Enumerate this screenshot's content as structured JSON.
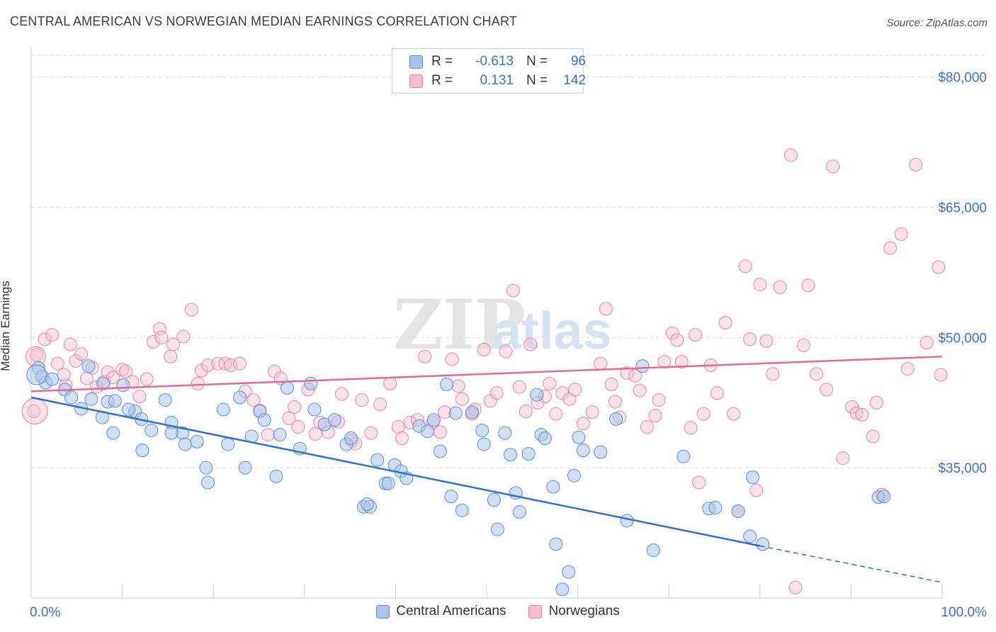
{
  "title": "CENTRAL AMERICAN VS NORWEGIAN MEDIAN EARNINGS CORRELATION CHART",
  "source": "Source: ZipAtlas.com",
  "watermark": {
    "zip": "ZIP",
    "atlas": "atlas"
  },
  "legend": {
    "rows": [
      {
        "series": "Central Americans",
        "r_label": "R =",
        "r_value": "-0.613",
        "n_label": "N =",
        "n_value": "96"
      },
      {
        "series": "Norwegians",
        "r_label": "R =",
        "r_value": "0.131",
        "n_label": "N =",
        "n_value": "142"
      }
    ]
  },
  "colors": {
    "blue_fill": "#a9c4ec",
    "blue_stroke": "#5b8fdc",
    "blue_line": "#2e6fd4",
    "pink_fill": "#f6bcd0",
    "pink_stroke": "#e585a6",
    "pink_line": "#e26a93",
    "axis_label": "#3a6fd8",
    "grid": "#dcdcdc"
  },
  "chart_data": {
    "type": "scatter",
    "title": "CENTRAL AMERICAN VS NORWEGIAN MEDIAN EARNINGS CORRELATION CHART",
    "xlabel": "",
    "ylabel": "Median Earnings",
    "xlim": [
      0,
      100
    ],
    "ylim": [
      20000,
      82500
    ],
    "x_tick_labels": [
      "0.0%",
      "100.0%"
    ],
    "y_ticks": [
      35000,
      50000,
      65000,
      80000
    ],
    "y_tick_labels": [
      "$35,000",
      "$50,000",
      "$65,000",
      "$80,000"
    ],
    "grid": true,
    "legend_position": "bottom-center",
    "series": [
      {
        "name": "Central Americans",
        "color": "blue",
        "r": -0.613,
        "n": 96,
        "trend": {
          "x": [
            0,
            80
          ],
          "y": [
            43100,
            26000
          ],
          "dashed_to": [
            100,
            21800
          ]
        },
        "points": [
          [
            0.8,
            46500
          ],
          [
            1.2,
            45500
          ],
          [
            1.6,
            44800
          ],
          [
            2.3,
            45200
          ],
          [
            3.7,
            44000
          ],
          [
            4.4,
            43100
          ],
          [
            6.3,
            46700
          ],
          [
            6.6,
            42900
          ],
          [
            5.5,
            41800
          ],
          [
            7.8,
            40800
          ],
          [
            8.4,
            42600
          ],
          [
            9.2,
            42700
          ],
          [
            7.9,
            44700
          ],
          [
            10.1,
            44500
          ],
          [
            11.4,
            41500
          ],
          [
            12.1,
            40600
          ],
          [
            14.7,
            42800
          ],
          [
            13.2,
            39300
          ],
          [
            15.4,
            40200
          ],
          [
            16.6,
            39000
          ],
          [
            16.9,
            37700
          ],
          [
            18.2,
            38000
          ],
          [
            19.2,
            35000
          ],
          [
            19.4,
            33300
          ],
          [
            10.7,
            41700
          ],
          [
            12.2,
            37000
          ],
          [
            9.0,
            39000
          ],
          [
            15.4,
            39000
          ],
          [
            21.1,
            41700
          ],
          [
            21.6,
            37700
          ],
          [
            22.9,
            43100
          ],
          [
            23.5,
            35000
          ],
          [
            24.2,
            38600
          ],
          [
            25.1,
            41500
          ],
          [
            25.6,
            40500
          ],
          [
            26.9,
            34000
          ],
          [
            27.3,
            38800
          ],
          [
            28.1,
            44200
          ],
          [
            29.5,
            37200
          ],
          [
            30.7,
            44700
          ],
          [
            31.1,
            41700
          ],
          [
            32.2,
            40000
          ],
          [
            33.3,
            40500
          ],
          [
            34.6,
            37700
          ],
          [
            35.1,
            38400
          ],
          [
            36.5,
            30500
          ],
          [
            37.2,
            30500
          ],
          [
            38.0,
            35900
          ],
          [
            36.9,
            30800
          ],
          [
            38.9,
            33200
          ],
          [
            39.2,
            33200
          ],
          [
            39.9,
            35300
          ],
          [
            40.6,
            34600
          ],
          [
            41.2,
            33800
          ],
          [
            42.6,
            39800
          ],
          [
            43.5,
            39200
          ],
          [
            44.2,
            40500
          ],
          [
            44.9,
            36900
          ],
          [
            45.6,
            44600
          ],
          [
            46.6,
            41300
          ],
          [
            47.3,
            30100
          ],
          [
            46.1,
            31700
          ],
          [
            48.4,
            41400
          ],
          [
            49.5,
            39300
          ],
          [
            49.7,
            37700
          ],
          [
            50.8,
            31300
          ],
          [
            51.2,
            27900
          ],
          [
            52.0,
            39000
          ],
          [
            52.6,
            36500
          ],
          [
            53.2,
            32100
          ],
          [
            53.6,
            29900
          ],
          [
            54.6,
            36600
          ],
          [
            55.5,
            43400
          ],
          [
            56.0,
            38800
          ],
          [
            56.4,
            38400
          ],
          [
            57.3,
            32800
          ],
          [
            57.6,
            26200
          ],
          [
            58.3,
            21000
          ],
          [
            59.0,
            23000
          ],
          [
            59.6,
            34100
          ],
          [
            60.1,
            38500
          ],
          [
            60.6,
            37000
          ],
          [
            62.5,
            36800
          ],
          [
            64.2,
            40600
          ],
          [
            65.4,
            28900
          ],
          [
            67.1,
            46700
          ],
          [
            68.3,
            25500
          ],
          [
            71.6,
            36300
          ],
          [
            74.4,
            30300
          ],
          [
            75.1,
            30400
          ],
          [
            78.9,
            27100
          ],
          [
            79.2,
            33900
          ],
          [
            80.3,
            26200
          ],
          [
            77.6,
            30000
          ],
          [
            93.0,
            31600
          ],
          [
            93.6,
            31700
          ]
        ]
      },
      {
        "name": "Norwegians",
        "color": "pink",
        "r": 0.131,
        "n": 142,
        "trend": {
          "x": [
            0,
            100
          ],
          "y": [
            43800,
            47800
          ]
        },
        "points": [
          [
            0.3,
            41500
          ],
          [
            0.6,
            48000
          ],
          [
            1.5,
            49800
          ],
          [
            2.3,
            50300
          ],
          [
            2.9,
            47000
          ],
          [
            3.8,
            44500
          ],
          [
            3.6,
            45700
          ],
          [
            4.3,
            49200
          ],
          [
            4.9,
            47300
          ],
          [
            5.5,
            48100
          ],
          [
            6.1,
            45300
          ],
          [
            6.7,
            46500
          ],
          [
            7.2,
            44300
          ],
          [
            8.0,
            44900
          ],
          [
            8.4,
            46000
          ],
          [
            9.0,
            45400
          ],
          [
            10.0,
            46300
          ],
          [
            10.4,
            46100
          ],
          [
            11.1,
            44900
          ],
          [
            11.9,
            43200
          ],
          [
            12.7,
            45200
          ],
          [
            13.4,
            49500
          ],
          [
            14.1,
            51000
          ],
          [
            14.3,
            50000
          ],
          [
            15.3,
            47800
          ],
          [
            15.6,
            49200
          ],
          [
            16.7,
            50100
          ],
          [
            17.6,
            53200
          ],
          [
            18.3,
            44700
          ],
          [
            18.7,
            46200
          ],
          [
            19.4,
            46800
          ],
          [
            20.5,
            47000
          ],
          [
            21.3,
            47000
          ],
          [
            21.9,
            46800
          ],
          [
            22.9,
            47000
          ],
          [
            23.5,
            43800
          ],
          [
            24.4,
            42800
          ],
          [
            25.1,
            41600
          ],
          [
            26.0,
            38800
          ],
          [
            26.7,
            46100
          ],
          [
            27.4,
            45300
          ],
          [
            28.3,
            40700
          ],
          [
            28.9,
            42000
          ],
          [
            29.3,
            39700
          ],
          [
            30.4,
            44000
          ],
          [
            31.2,
            38900
          ],
          [
            31.7,
            40200
          ],
          [
            32.6,
            39100
          ],
          [
            33.7,
            40300
          ],
          [
            34.1,
            43500
          ],
          [
            35.2,
            38100
          ],
          [
            35.6,
            37800
          ],
          [
            36.3,
            42800
          ],
          [
            37.3,
            39000
          ],
          [
            38.3,
            42300
          ],
          [
            39.4,
            44700
          ],
          [
            40.3,
            39700
          ],
          [
            40.7,
            38400
          ],
          [
            41.6,
            40200
          ],
          [
            42.4,
            40500
          ],
          [
            43.2,
            47800
          ],
          [
            44.1,
            40200
          ],
          [
            44.9,
            39100
          ],
          [
            45.4,
            41400
          ],
          [
            46.2,
            47500
          ],
          [
            46.9,
            44400
          ],
          [
            47.3,
            42900
          ],
          [
            48.4,
            41200
          ],
          [
            48.7,
            41700
          ],
          [
            49.7,
            48600
          ],
          [
            50.4,
            42700
          ],
          [
            51.1,
            43600
          ],
          [
            52.1,
            48400
          ],
          [
            52.9,
            55400
          ],
          [
            53.6,
            44300
          ],
          [
            54.3,
            41500
          ],
          [
            54.8,
            49200
          ],
          [
            55.6,
            42500
          ],
          [
            56.4,
            43200
          ],
          [
            56.9,
            44700
          ],
          [
            57.6,
            41200
          ],
          [
            58.3,
            43600
          ],
          [
            59.1,
            42900
          ],
          [
            59.7,
            44000
          ],
          [
            60.6,
            40100
          ],
          [
            61.6,
            41400
          ],
          [
            62.5,
            47000
          ],
          [
            63.1,
            53300
          ],
          [
            63.7,
            44600
          ],
          [
            64.1,
            42600
          ],
          [
            64.6,
            40800
          ],
          [
            65.4,
            45900
          ],
          [
            66.3,
            45600
          ],
          [
            66.8,
            43900
          ],
          [
            67.6,
            39700
          ],
          [
            68.5,
            41000
          ],
          [
            68.9,
            42800
          ],
          [
            69.5,
            47200
          ],
          [
            70.4,
            50500
          ],
          [
            70.9,
            49700
          ],
          [
            71.4,
            47200
          ],
          [
            72.4,
            39600
          ],
          [
            72.9,
            50300
          ],
          [
            73.3,
            33300
          ],
          [
            73.8,
            41200
          ],
          [
            74.6,
            46800
          ],
          [
            75.3,
            43600
          ],
          [
            76.2,
            51700
          ],
          [
            77.1,
            41200
          ],
          [
            77.6,
            30000
          ],
          [
            78.4,
            58200
          ],
          [
            78.9,
            49800
          ],
          [
            79.6,
            32400
          ],
          [
            80.0,
            56100
          ],
          [
            80.7,
            49600
          ],
          [
            81.4,
            45800
          ],
          [
            82.2,
            55800
          ],
          [
            83.4,
            71000
          ],
          [
            83.9,
            21200
          ],
          [
            84.8,
            49100
          ],
          [
            85.3,
            56000
          ],
          [
            86.2,
            45800
          ],
          [
            87.3,
            44000
          ],
          [
            88.0,
            69700
          ],
          [
            89.1,
            36100
          ],
          [
            90.1,
            42000
          ],
          [
            90.6,
            41300
          ],
          [
            91.2,
            41100
          ],
          [
            92.4,
            38600
          ],
          [
            92.8,
            42500
          ],
          [
            93.4,
            31900
          ],
          [
            94.3,
            60300
          ],
          [
            95.5,
            61900
          ],
          [
            96.2,
            46400
          ],
          [
            97.1,
            69900
          ],
          [
            98.3,
            49400
          ],
          [
            99.6,
            58100
          ],
          [
            100.5,
            45700
          ]
        ]
      }
    ]
  }
}
